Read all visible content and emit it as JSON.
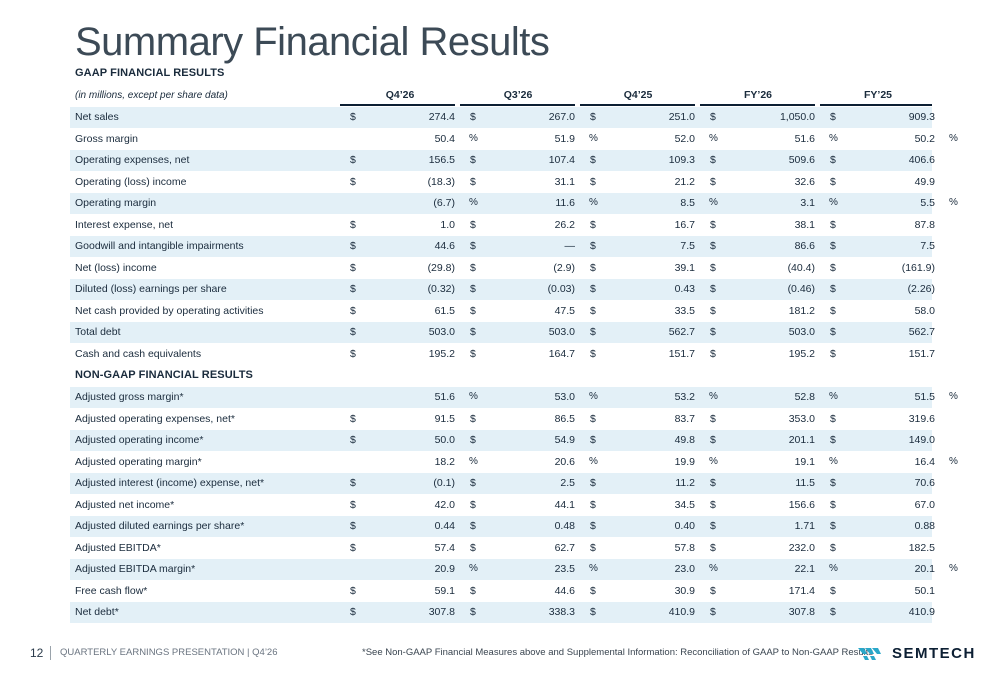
{
  "title": "Summary Financial Results",
  "gaap_section_title": "GAAP FINANCIAL RESULTS",
  "units_note": "(in millions, except per share data)",
  "columns": [
    "Q4’26",
    "Q3’26",
    "Q4’25",
    "FY’26",
    "FY’25"
  ],
  "gaap_rows": [
    {
      "label": "Net sales",
      "cells": [
        [
          "$",
          "274.4",
          ""
        ],
        [
          "$",
          "267.0",
          ""
        ],
        [
          "$",
          "251.0",
          ""
        ],
        [
          "$",
          "1,050.0",
          ""
        ],
        [
          "$",
          "909.3",
          ""
        ]
      ]
    },
    {
      "label": "Gross margin",
      "cells": [
        [
          "",
          "50.4",
          "%"
        ],
        [
          "",
          "51.9",
          "%"
        ],
        [
          "",
          "52.0",
          "%"
        ],
        [
          "",
          "51.6",
          "%"
        ],
        [
          "",
          "50.2",
          "%"
        ]
      ]
    },
    {
      "label": "Operating expenses, net",
      "cells": [
        [
          "$",
          "156.5",
          ""
        ],
        [
          "$",
          "107.4",
          ""
        ],
        [
          "$",
          "109.3",
          ""
        ],
        [
          "$",
          "509.6",
          ""
        ],
        [
          "$",
          "406.6",
          ""
        ]
      ]
    },
    {
      "label": "Operating (loss) income",
      "cells": [
        [
          "$",
          "(18.3)",
          ""
        ],
        [
          "$",
          "31.1",
          ""
        ],
        [
          "$",
          "21.2",
          ""
        ],
        [
          "$",
          "32.6",
          ""
        ],
        [
          "$",
          "49.9",
          ""
        ]
      ]
    },
    {
      "label": "Operating margin",
      "cells": [
        [
          "",
          "(6.7)",
          "%"
        ],
        [
          "",
          "11.6",
          "%"
        ],
        [
          "",
          "8.5",
          "%"
        ],
        [
          "",
          "3.1",
          "%"
        ],
        [
          "",
          "5.5",
          "%"
        ]
      ]
    },
    {
      "label": "Interest expense, net",
      "cells": [
        [
          "$",
          "1.0",
          ""
        ],
        [
          "$",
          "26.2",
          ""
        ],
        [
          "$",
          "16.7",
          ""
        ],
        [
          "$",
          "38.1",
          ""
        ],
        [
          "$",
          "87.8",
          ""
        ]
      ]
    },
    {
      "label": "Goodwill and intangible impairments",
      "cells": [
        [
          "$",
          "44.6",
          ""
        ],
        [
          "$",
          "—",
          ""
        ],
        [
          "$",
          "7.5",
          ""
        ],
        [
          "$",
          "86.6",
          ""
        ],
        [
          "$",
          "7.5",
          ""
        ]
      ]
    },
    {
      "label": "Net (loss) income",
      "cells": [
        [
          "$",
          "(29.8)",
          ""
        ],
        [
          "$",
          "(2.9)",
          ""
        ],
        [
          "$",
          "39.1",
          ""
        ],
        [
          "$",
          "(40.4)",
          ""
        ],
        [
          "$",
          "(161.9)",
          ""
        ]
      ]
    },
    {
      "label": "Diluted (loss) earnings per share",
      "cells": [
        [
          "$",
          "(0.32)",
          ""
        ],
        [
          "$",
          "(0.03)",
          ""
        ],
        [
          "$",
          "0.43",
          ""
        ],
        [
          "$",
          "(0.46)",
          ""
        ],
        [
          "$",
          "(2.26)",
          ""
        ]
      ]
    },
    {
      "label": "Net cash provided by operating activities",
      "cells": [
        [
          "$",
          "61.5",
          ""
        ],
        [
          "$",
          "47.5",
          ""
        ],
        [
          "$",
          "33.5",
          ""
        ],
        [
          "$",
          "181.2",
          ""
        ],
        [
          "$",
          "58.0",
          ""
        ]
      ]
    },
    {
      "label": "Total debt",
      "cells": [
        [
          "$",
          "503.0",
          ""
        ],
        [
          "$",
          "503.0",
          ""
        ],
        [
          "$",
          "562.7",
          ""
        ],
        [
          "$",
          "503.0",
          ""
        ],
        [
          "$",
          "562.7",
          ""
        ]
      ]
    },
    {
      "label": "Cash and cash equivalents",
      "cells": [
        [
          "$",
          "195.2",
          ""
        ],
        [
          "$",
          "164.7",
          ""
        ],
        [
          "$",
          "151.7",
          ""
        ],
        [
          "$",
          "195.2",
          ""
        ],
        [
          "$",
          "151.7",
          ""
        ]
      ]
    }
  ],
  "nongaap_section_title": "NON-GAAP FINANCIAL RESULTS",
  "nongaap_rows": [
    {
      "label": "Adjusted gross margin*",
      "cells": [
        [
          "",
          "51.6",
          "%"
        ],
        [
          "",
          "53.0",
          "%"
        ],
        [
          "",
          "53.2",
          "%"
        ],
        [
          "",
          "52.8",
          "%"
        ],
        [
          "",
          "51.5",
          "%"
        ]
      ]
    },
    {
      "label": "Adjusted operating expenses, net*",
      "cells": [
        [
          "$",
          "91.5",
          ""
        ],
        [
          "$",
          "86.5",
          ""
        ],
        [
          "$",
          "83.7",
          ""
        ],
        [
          "$",
          "353.0",
          ""
        ],
        [
          "$",
          "319.6",
          ""
        ]
      ]
    },
    {
      "label": "Adjusted operating income*",
      "cells": [
        [
          "$",
          "50.0",
          ""
        ],
        [
          "$",
          "54.9",
          ""
        ],
        [
          "$",
          "49.8",
          ""
        ],
        [
          "$",
          "201.1",
          ""
        ],
        [
          "$",
          "149.0",
          ""
        ]
      ]
    },
    {
      "label": "Adjusted operating margin*",
      "cells": [
        [
          "",
          "18.2",
          "%"
        ],
        [
          "",
          "20.6",
          "%"
        ],
        [
          "",
          "19.9",
          "%"
        ],
        [
          "",
          "19.1",
          "%"
        ],
        [
          "",
          "16.4",
          "%"
        ]
      ]
    },
    {
      "label": "Adjusted interest (income) expense, net*",
      "cells": [
        [
          "$",
          "(0.1)",
          ""
        ],
        [
          "$",
          "2.5",
          ""
        ],
        [
          "$",
          "11.2",
          ""
        ],
        [
          "$",
          "11.5",
          ""
        ],
        [
          "$",
          "70.6",
          ""
        ]
      ]
    },
    {
      "label": "Adjusted net income*",
      "cells": [
        [
          "$",
          "42.0",
          ""
        ],
        [
          "$",
          "44.1",
          ""
        ],
        [
          "$",
          "34.5",
          ""
        ],
        [
          "$",
          "156.6",
          ""
        ],
        [
          "$",
          "67.0",
          ""
        ]
      ]
    },
    {
      "label": "Adjusted diluted earnings per share*",
      "cells": [
        [
          "$",
          "0.44",
          ""
        ],
        [
          "$",
          "0.48",
          ""
        ],
        [
          "$",
          "0.40",
          ""
        ],
        [
          "$",
          "1.71",
          ""
        ],
        [
          "$",
          "0.88",
          ""
        ]
      ]
    },
    {
      "label": "Adjusted EBITDA*",
      "cells": [
        [
          "$",
          "57.4",
          ""
        ],
        [
          "$",
          "62.7",
          ""
        ],
        [
          "$",
          "57.8",
          ""
        ],
        [
          "$",
          "232.0",
          ""
        ],
        [
          "$",
          "182.5",
          ""
        ]
      ]
    },
    {
      "label": "Adjusted EBITDA margin*",
      "cells": [
        [
          "",
          "20.9",
          "%"
        ],
        [
          "",
          "23.5",
          "%"
        ],
        [
          "",
          "23.0",
          "%"
        ],
        [
          "",
          "22.1",
          "%"
        ],
        [
          "",
          "20.1",
          "%"
        ]
      ]
    },
    {
      "label": "Free cash flow*",
      "cells": [
        [
          "$",
          "59.1",
          ""
        ],
        [
          "$",
          "44.6",
          ""
        ],
        [
          "$",
          "30.9",
          ""
        ],
        [
          "$",
          "171.4",
          ""
        ],
        [
          "$",
          "50.1",
          ""
        ]
      ]
    },
    {
      "label": "Net debt*",
      "cells": [
        [
          "$",
          "307.8",
          ""
        ],
        [
          "$",
          "338.3",
          ""
        ],
        [
          "$",
          "410.9",
          ""
        ],
        [
          "$",
          "307.8",
          ""
        ],
        [
          "$",
          "410.9",
          ""
        ]
      ]
    }
  ],
  "footer": {
    "page_number": "12",
    "presentation_label": "QUARTERLY EARNINGS PRESENTATION | Q4’26",
    "footnote": "*See Non-GAAP Financial Measures above and Supplemental Information: Reconciliation of GAAP to Non-GAAP Results",
    "logo_text": "SEMTECH",
    "logo_icon": "semtech-wave-icon"
  },
  "colors": {
    "shade": "#e3f0f7",
    "title": "#3c4a56",
    "accent": "#2aa7c9",
    "dark": "#0c1f33"
  }
}
